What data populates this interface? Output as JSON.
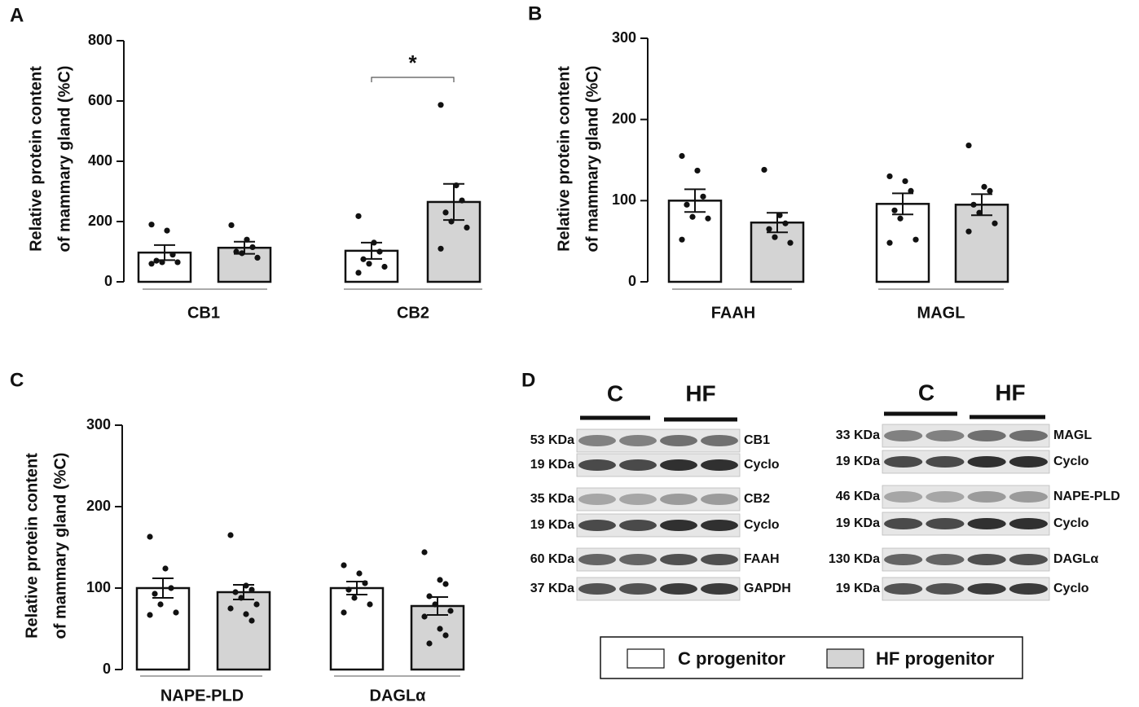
{
  "chart_data": [
    {
      "type": "bar",
      "panel": "A",
      "ylabel": [
        "Relative protein content",
        "of mammary gland  (%C)"
      ],
      "categories": [
        "CB1",
        "CB2"
      ],
      "ylim": [
        0,
        800
      ],
      "yticks": [
        0,
        200,
        400,
        600,
        800
      ],
      "significance": "*",
      "series": [
        {
          "color": "#ffffff",
          "values": [
            97,
            103
          ],
          "errors": [
            25,
            27
          ],
          "points": [
            [
              190,
              170,
              90,
              70,
              65,
              65,
              60
            ],
            [
              218,
              130,
              100,
              75,
              60,
              50,
              30
            ]
          ]
        },
        {
          "color": "#d4d4d4",
          "values": [
            113,
            265
          ],
          "errors": [
            20,
            60
          ],
          "points": [
            [
              188,
              140,
              115,
              100,
              95,
              80
            ],
            [
              587,
              320,
              270,
              230,
              200,
              180,
              110
            ]
          ]
        }
      ]
    },
    {
      "type": "bar",
      "panel": "B",
      "ylabel": [
        "Relative protein content",
        "of mammary gland  (%C)"
      ],
      "categories": [
        "FAAH",
        "MAGL"
      ],
      "ylim": [
        0,
        300
      ],
      "yticks": [
        0,
        100,
        200,
        300
      ],
      "series": [
        {
          "color": "#ffffff",
          "values": [
            100,
            96
          ],
          "errors": [
            14,
            13
          ],
          "points": [
            [
              155,
              137,
              105,
              95,
              80,
              78,
              52
            ],
            [
              130,
              124,
              112,
              88,
              78,
              52,
              48
            ]
          ]
        },
        {
          "color": "#d4d4d4",
          "values": [
            73,
            95
          ],
          "errors": [
            12,
            13
          ],
          "points": [
            [
              138,
              82,
              72,
              65,
              55,
              48
            ],
            [
              168,
              117,
              112,
              95,
              85,
              72,
              62
            ]
          ]
        }
      ]
    },
    {
      "type": "bar",
      "panel": "C",
      "ylabel": [
        "Relative protein content",
        "of mammary gland  (%C)"
      ],
      "categories": [
        "NAPE-PLD",
        "DAGLα"
      ],
      "ylim": [
        0,
        300
      ],
      "yticks": [
        0,
        100,
        200,
        300
      ],
      "series": [
        {
          "color": "#ffffff",
          "values": [
            100,
            100
          ],
          "errors": [
            12,
            8
          ],
          "points": [
            [
              163,
              124,
              100,
              93,
              80,
              70,
              67
            ],
            [
              128,
              118,
              106,
              98,
              88,
              80,
              70
            ]
          ]
        },
        {
          "color": "#d4d4d4",
          "values": [
            95,
            78
          ],
          "errors": [
            9,
            11
          ],
          "points": [
            [
              165,
              103,
              98,
              95,
              88,
              80,
              75,
              68,
              60
            ],
            [
              144,
              110,
              105,
              90,
              80,
              72,
              65,
              50,
              42,
              32
            ]
          ]
        }
      ]
    }
  ],
  "legend": [
    {
      "name": "C progenitor",
      "color": "#ffffff"
    },
    {
      "name": "HF progenitor",
      "color": "#d4d4d4"
    }
  ],
  "blots": {
    "panel": "D",
    "groups": [
      {
        "headers": [
          "C",
          "HF"
        ],
        "rows": [
          {
            "size": "53 KDa",
            "protein": "CB1"
          },
          {
            "size": "19 KDa",
            "protein": "Cyclo"
          },
          {
            "size": "35 KDa",
            "protein": "CB2"
          },
          {
            "size": "19 KDa",
            "protein": "Cyclo"
          },
          {
            "size": "60 KDa",
            "protein": "FAAH"
          },
          {
            "size": "37 KDa",
            "protein": "GAPDH"
          }
        ]
      },
      {
        "headers": [
          "C",
          "HF"
        ],
        "rows": [
          {
            "size": "33 KDa",
            "protein": "MAGL"
          },
          {
            "size": "19 KDa",
            "protein": "Cyclo"
          },
          {
            "size": "46 KDa",
            "protein": "NAPE-PLD"
          },
          {
            "size": "19 KDa",
            "protein": "Cyclo"
          },
          {
            "size": "130 KDa",
            "protein": "DAGLα"
          },
          {
            "size": "19 KDa",
            "protein": "Cyclo"
          }
        ]
      }
    ]
  }
}
